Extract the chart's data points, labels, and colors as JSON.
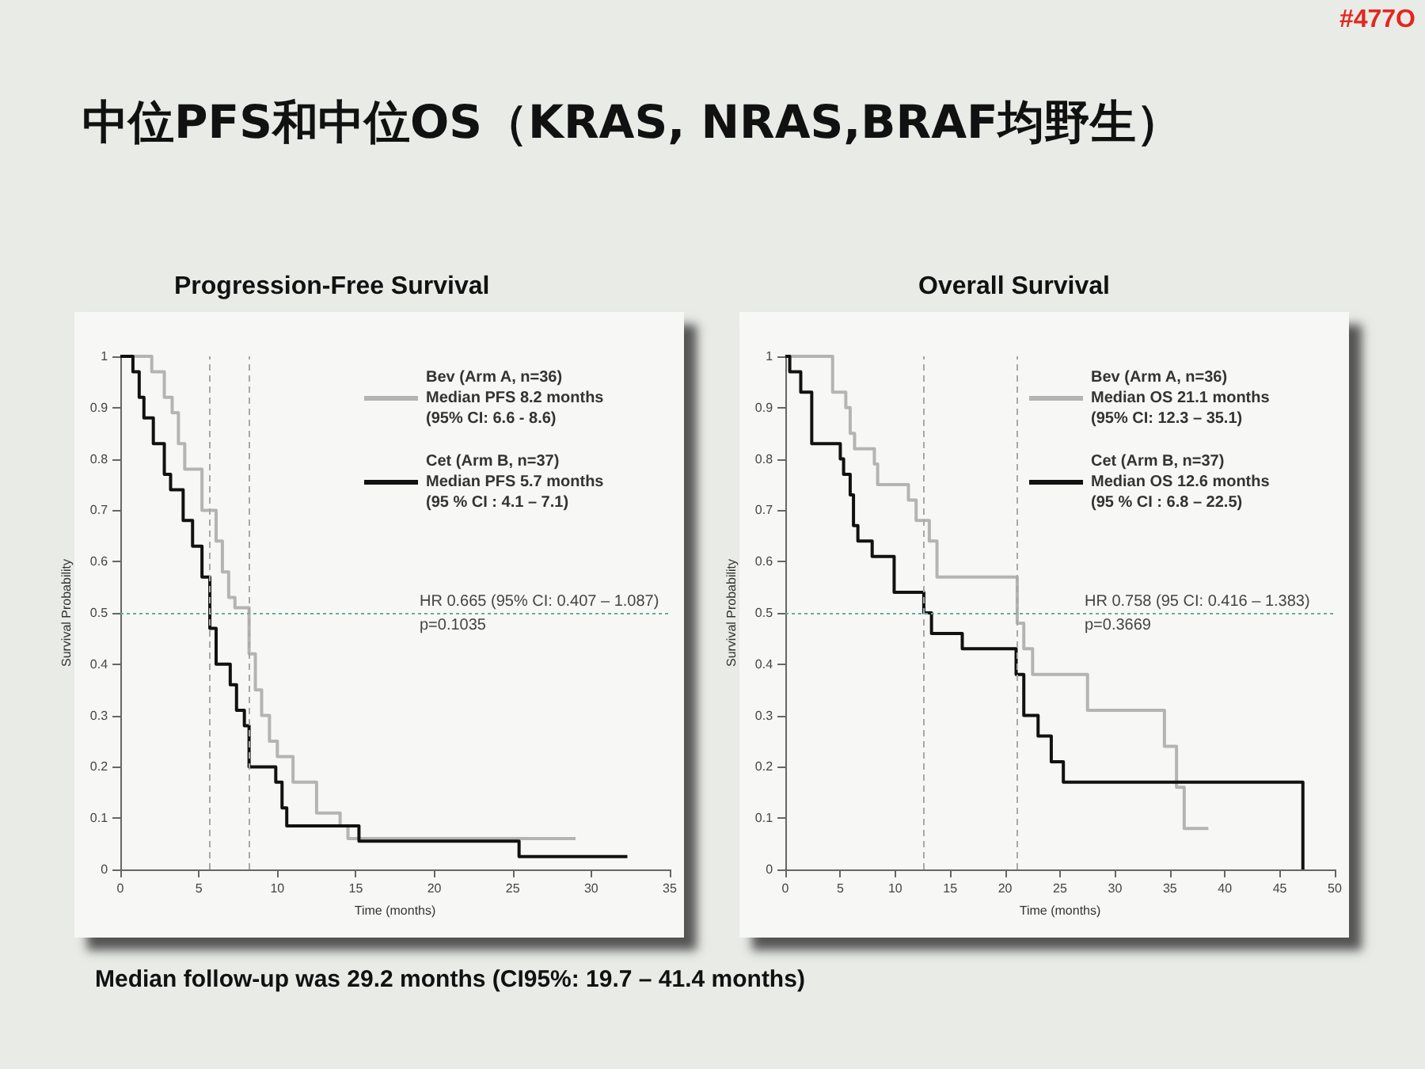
{
  "chart_data": [
    {
      "type": "step",
      "title": "中位PFS和中位OS（KRAS, NRAS,BRAF均野生）",
      "subtitle": "Progression-Free Survival",
      "xlabel": "Time (months)",
      "ylabel": "Survival Probability",
      "xlim": [
        0,
        35
      ],
      "xticks": [
        0,
        5,
        10,
        15,
        20,
        25,
        30,
        35
      ],
      "ylim": [
        0,
        1
      ],
      "yticks": [
        0,
        0.1,
        0.2,
        0.3,
        0.4,
        0.5,
        0.6,
        0.7,
        0.8,
        0.9,
        1
      ],
      "legend": "top right",
      "grid": false,
      "series": [
        {
          "name": "Bev (Arm A, n=36)\nMedian PFS 8.2 months\n(95% CI: 6.6 - 8.6)",
          "color": "#b4b4b4",
          "x": [
            0,
            2.0,
            2.8,
            3.3,
            3.7,
            4.1,
            5.2,
            6.1,
            6.5,
            6.9,
            7.3,
            8.2,
            8.6,
            9.0,
            9.5,
            10.0,
            11.0,
            12.5,
            14.0,
            14.5,
            29.0
          ],
          "values": [
            1,
            0.97,
            0.92,
            0.89,
            0.83,
            0.78,
            0.7,
            0.64,
            0.58,
            0.53,
            0.51,
            0.42,
            0.35,
            0.3,
            0.25,
            0.22,
            0.17,
            0.11,
            0.085,
            0.06,
            0.06
          ]
        },
        {
          "name": "Cet (Arm B, n=37)\nMedian PFS 5.7 months\n(95 % CI : 4.1 – 7.1)",
          "color": "#111111",
          "x": [
            0,
            0.8,
            1.2,
            1.5,
            2.1,
            2.8,
            3.2,
            4.0,
            4.6,
            5.2,
            5.7,
            6.1,
            7.0,
            7.4,
            7.9,
            8.2,
            9.9,
            10.3,
            10.6,
            15.2,
            25.4,
            32.3
          ],
          "values": [
            1,
            0.97,
            0.92,
            0.88,
            0.83,
            0.77,
            0.74,
            0.68,
            0.63,
            0.57,
            0.47,
            0.4,
            0.36,
            0.31,
            0.28,
            0.2,
            0.17,
            0.12,
            0.085,
            0.055,
            0.025,
            0.025
          ]
        }
      ],
      "ref_lines": [
        {
          "axis": "y",
          "value": 0.5,
          "color": "#6aa6a6",
          "line_style": "dotted"
        },
        {
          "axis": "x",
          "value": 5.7,
          "color": "#a8a8a8",
          "line_style": "dashed"
        },
        {
          "axis": "x",
          "value": 8.2,
          "color": "#a8a8a8",
          "line_style": "dashed"
        }
      ],
      "annotations": [
        "HR 0.665 (95% CI: 0.407 – 1.087)",
        "p=0.1035",
        "#477O",
        "Median follow-up was 29.2 months (CI95%: 19.7 – 41.4 months)"
      ]
    },
    {
      "type": "step",
      "title": "Overall Survival",
      "xlabel": "Time (months)",
      "ylabel": "Survival Probability",
      "xlim": [
        0,
        50
      ],
      "xticks": [
        0,
        5,
        10,
        15,
        20,
        25,
        30,
        35,
        40,
        45,
        50
      ],
      "ylim": [
        0,
        1
      ],
      "yticks": [
        0,
        0.1,
        0.2,
        0.3,
        0.4,
        0.5,
        0.6,
        0.7,
        0.8,
        0.9,
        1
      ],
      "legend": "top right",
      "grid": false,
      "series": [
        {
          "name": "Bev (Arm A, n=36)\nMedian OS 21.1 months\n(95% CI: 12.3 – 35.1)",
          "color": "#b4b4b4",
          "x": [
            0,
            4.3,
            5.5,
            5.9,
            6.3,
            8.1,
            8.4,
            11.2,
            11.9,
            13.1,
            13.8,
            21.1,
            21.7,
            22.5,
            27.5,
            34.5,
            35.6,
            36.3,
            38.5
          ],
          "values": [
            1,
            0.93,
            0.9,
            0.85,
            0.82,
            0.79,
            0.75,
            0.72,
            0.68,
            0.64,
            0.57,
            0.48,
            0.43,
            0.38,
            0.31,
            0.24,
            0.16,
            0.08,
            0.08
          ]
        },
        {
          "name": "Cet (Arm B, n=37)\nMedian OS 12.6 months\n(95 % CI : 6.8 – 22.5)",
          "color": "#111111",
          "x": [
            0,
            0.4,
            1.4,
            2.4,
            5.0,
            5.3,
            5.9,
            6.2,
            6.6,
            7.9,
            9.9,
            12.6,
            13.3,
            16.1,
            21.0,
            21.7,
            23.0,
            24.2,
            25.3,
            47.1
          ],
          "values": [
            1,
            0.97,
            0.93,
            0.83,
            0.8,
            0.77,
            0.73,
            0.67,
            0.64,
            0.61,
            0.54,
            0.5,
            0.46,
            0.43,
            0.38,
            0.3,
            0.26,
            0.21,
            0.17,
            0
          ]
        }
      ],
      "ref_lines": [
        {
          "axis": "y",
          "value": 0.5,
          "color": "#6aa6a6",
          "line_style": "dotted"
        },
        {
          "axis": "x",
          "value": 12.6,
          "color": "#a8a8a8",
          "line_style": "dashed"
        },
        {
          "axis": "x",
          "value": 21.1,
          "color": "#a8a8a8",
          "line_style": "dashed"
        }
      ],
      "annotations": [
        "HR 0.758 (95 CI: 0.416 – 1.383)",
        "p=0.3669"
      ]
    }
  ]
}
